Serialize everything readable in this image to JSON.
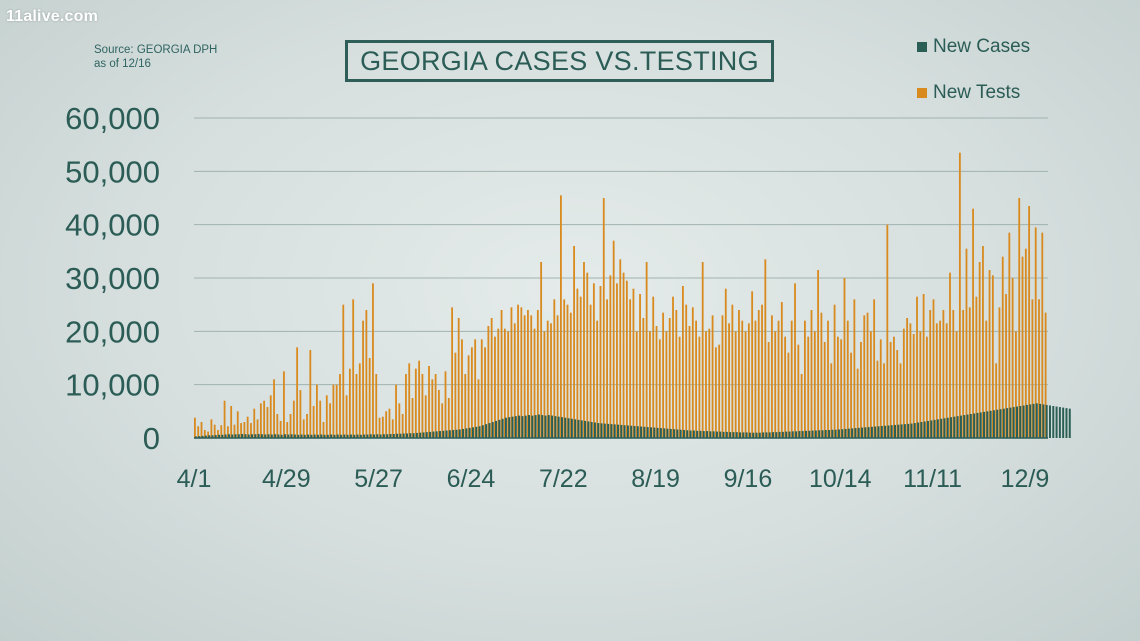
{
  "brand": "11alive.com",
  "source_line1": "Source: GEORGIA DPH",
  "source_line2": "as of 12/16",
  "colors": {
    "cases": "#2b5e55",
    "tests": "#d98a1f",
    "text": "#2b5c56"
  },
  "chart_data": {
    "type": "bar",
    "title": "GEORGIA CASES VS.TESTING",
    "ylim": [
      0,
      60000
    ],
    "yticks": [
      0,
      10000,
      20000,
      30000,
      40000,
      50000,
      60000
    ],
    "ytick_labels": [
      "0",
      "10,000",
      "20,000",
      "30,000",
      "40,000",
      "50,000",
      "60,000"
    ],
    "xticks": [
      {
        "label": "4/1",
        "day": 0
      },
      {
        "label": "4/29",
        "day": 28
      },
      {
        "label": "5/27",
        "day": 56
      },
      {
        "label": "6/24",
        "day": 84
      },
      {
        "label": "7/22",
        "day": 112
      },
      {
        "label": "8/19",
        "day": 140
      },
      {
        "label": "9/16",
        "day": 168
      },
      {
        "label": "10/14",
        "day": 196
      },
      {
        "label": "11/11",
        "day": 224
      },
      {
        "label": "12/9",
        "day": 252
      }
    ],
    "grid": true,
    "legend_position": "top-right",
    "series": [
      {
        "name": "New Cases",
        "values": [
          300,
          350,
          400,
          450,
          500,
          500,
          550,
          600,
          600,
          650,
          700,
          650,
          700,
          700,
          750,
          700,
          650,
          700,
          700,
          750,
          700,
          650,
          700,
          650,
          700,
          650,
          600,
          700,
          650,
          700,
          650,
          600,
          650,
          600,
          650,
          600,
          650,
          600,
          650,
          600,
          600,
          650,
          600,
          650,
          600,
          650,
          600,
          650,
          600,
          650,
          600,
          650,
          650,
          700,
          650,
          700,
          650,
          700,
          700,
          750,
          750,
          800,
          800,
          850,
          850,
          900,
          900,
          950,
          1000,
          1050,
          1100,
          1150,
          1200,
          1250,
          1300,
          1350,
          1400,
          1450,
          1500,
          1550,
          1600,
          1700,
          1800,
          1900,
          2000,
          2100,
          2200,
          2400,
          2600,
          2800,
          3000,
          3200,
          3400,
          3600,
          3800,
          3900,
          4000,
          4100,
          4200,
          4100,
          4200,
          4300,
          4200,
          4300,
          4400,
          4300,
          4200,
          4300,
          4200,
          4100,
          4000,
          3900,
          3800,
          3700,
          3600,
          3500,
          3400,
          3300,
          3200,
          3100,
          3000,
          2900,
          2800,
          2750,
          2700,
          2650,
          2600,
          2550,
          2500,
          2450,
          2400,
          2350,
          2300,
          2250,
          2200,
          2150,
          2100,
          2050,
          2000,
          1950,
          1900,
          1850,
          1800,
          1750,
          1700,
          1650,
          1600,
          1550,
          1500,
          1450,
          1400,
          1400,
          1350,
          1350,
          1300,
          1300,
          1250,
          1250,
          1200,
          1200,
          1150,
          1150,
          1100,
          1100,
          1100,
          1050,
          1050,
          1050,
          1000,
          1000,
          1000,
          1000,
          1050,
          1050,
          1050,
          1100,
          1100,
          1150,
          1150,
          1200,
          1200,
          1250,
          1250,
          1300,
          1300,
          1350,
          1350,
          1400,
          1400,
          1450,
          1450,
          1500,
          1500,
          1550,
          1550,
          1600,
          1650,
          1700,
          1750,
          1800,
          1850,
          1900,
          1950,
          2000,
          2050,
          2100,
          2150,
          2200,
          2250,
          2300,
          2350,
          2400,
          2450,
          2500,
          2550,
          2600,
          2650,
          2700,
          2800,
          2900,
          3000,
          3100,
          3200,
          3300,
          3400,
          3500,
          3600,
          3700,
          3800,
          3900,
          4000,
          4100,
          4200,
          4300,
          4400,
          4500,
          4600,
          4700,
          4800,
          4900,
          5000,
          5100,
          5200,
          5300,
          5400,
          5500,
          5600,
          5700,
          5800,
          5900,
          6000,
          6100,
          6200,
          6300,
          6400,
          6500,
          6400,
          6300,
          6200,
          6100,
          6000,
          5900,
          5800,
          5700,
          5600,
          5500
        ]
      },
      {
        "name": "New Tests",
        "values": [
          3800,
          2200,
          3000,
          1500,
          1200,
          3500,
          2500,
          1500,
          2400,
          7000,
          2200,
          6000,
          2500,
          5000,
          2800,
          3000,
          4000,
          2800,
          5500,
          3500,
          6500,
          7000,
          5800,
          8000,
          11000,
          4500,
          3200,
          12500,
          3000,
          4500,
          7000,
          17000,
          9000,
          3500,
          4500,
          16500,
          6000,
          10000,
          7000,
          3000,
          8000,
          6500,
          10000,
          10000,
          12000,
          25000,
          8000,
          13000,
          26000,
          12000,
          14000,
          22000,
          24000,
          15000,
          29000,
          12000,
          3800,
          4000,
          5000,
          5500,
          3500,
          10000,
          6500,
          4500,
          12000,
          14000,
          7500,
          13000,
          14500,
          12000,
          8000,
          13500,
          11000,
          12000,
          9000,
          6500,
          12500,
          7500,
          24500,
          16000,
          22500,
          18500,
          12000,
          15500,
          17000,
          18500,
          11000,
          18500,
          17000,
          21000,
          22500,
          19000,
          20500,
          24000,
          20500,
          20000,
          24500,
          21500,
          25000,
          24500,
          23000,
          24000,
          23000,
          20500,
          24000,
          33000,
          20000,
          22000,
          21500,
          26000,
          23000,
          45500,
          26000,
          25000,
          23500,
          36000,
          28000,
          26500,
          33000,
          31000,
          25000,
          29000,
          22000,
          28500,
          45000,
          26000,
          30500,
          37000,
          29000,
          33500,
          31000,
          29500,
          26000,
          28000,
          20000,
          27000,
          22500,
          33000,
          20000,
          26500,
          21000,
          18500,
          23500,
          20000,
          22500,
          26500,
          24000,
          19000,
          28500,
          25000,
          21000,
          24500,
          22000,
          19000,
          33000,
          20000,
          20500,
          23000,
          17000,
          17500,
          23000,
          28000,
          21500,
          25000,
          20000,
          24000,
          22000,
          20000,
          21500,
          27500,
          22000,
          24000,
          25000,
          33500,
          18000,
          23000,
          20000,
          22000,
          25500,
          19000,
          16000,
          22000,
          29000,
          17500,
          12000,
          22000,
          19000,
          24000,
          20000,
          31500,
          23500,
          18000,
          22000,
          14000,
          25000,
          19000,
          18500,
          30000,
          22000,
          16000,
          26000,
          13000,
          18000,
          23000,
          23500,
          20000,
          26000,
          14500,
          18500,
          14000,
          40000,
          18000,
          19000,
          16500,
          14000,
          20500,
          22500,
          21500,
          19500,
          26500,
          20000,
          27000,
          19000,
          24000,
          26000,
          21500,
          22000,
          24000,
          21500,
          31000,
          24000,
          20000,
          53500,
          24000,
          35500,
          24500,
          43000,
          26500,
          33000,
          36000,
          22000,
          31500,
          30500,
          14000,
          24500,
          34000,
          27000,
          38500,
          30000,
          20000,
          45000,
          34000,
          35500,
          43500,
          26000,
          39500,
          26000,
          38500,
          23500
        ]
      }
    ]
  }
}
